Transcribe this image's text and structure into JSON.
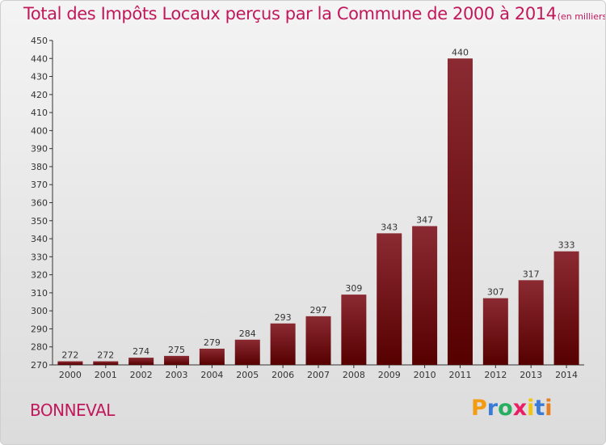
{
  "chart_data": {
    "type": "bar",
    "title": "Total des Impôts Locaux perçus par la Commune de 2000 à 2014",
    "title_unit": "(en milliers d'€)",
    "categories": [
      "2000",
      "2001",
      "2002",
      "2003",
      "2004",
      "2005",
      "2006",
      "2007",
      "2008",
      "2009",
      "2010",
      "2011",
      "2012",
      "2013",
      "2014"
    ],
    "values": [
      272,
      272,
      274,
      275,
      279,
      284,
      293,
      297,
      309,
      343,
      347,
      440,
      307,
      317,
      333
    ],
    "ylim": [
      270,
      450
    ],
    "yticks": [
      270,
      280,
      290,
      300,
      310,
      320,
      330,
      340,
      350,
      360,
      370,
      380,
      390,
      400,
      410,
      420,
      430,
      440,
      450
    ],
    "xlabel": "",
    "ylabel": "",
    "grid": false,
    "legend": "none",
    "bar_color": "#8b1a1a",
    "bar_color_dark": "#5a0000"
  },
  "commune": "BONNEVAL",
  "logo": {
    "letters": [
      "P",
      "r",
      "o",
      "x",
      "i",
      "t",
      "i"
    ],
    "colors": [
      "#f39c12",
      "#3a7bd5",
      "#27ae60",
      "#e91e63",
      "#f1c40f",
      "#3a7bd5",
      "#e67e22"
    ]
  },
  "colors": {
    "title": "#c2185b",
    "axis": "#333333"
  }
}
